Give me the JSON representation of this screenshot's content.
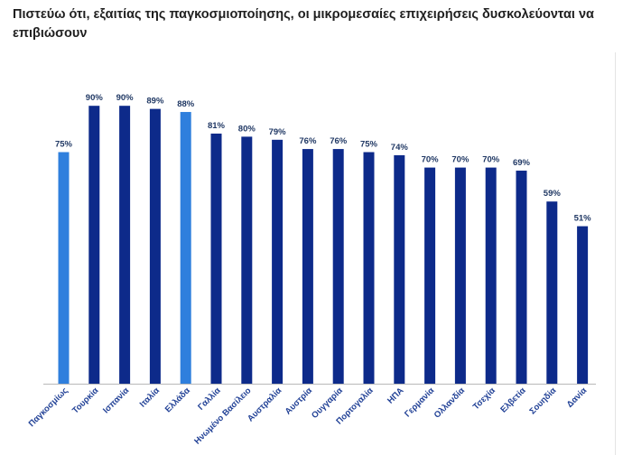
{
  "chart_data": {
    "type": "bar",
    "title": "Πιστεύω ότι, εξαιτίας της παγκοσμιοποίησης, οι μικρομεσαίες επιχειρήσεις δυσκολεύονται να επιβιώσουν",
    "xlabel": "",
    "ylabel": "",
    "ylim": [
      0,
      100
    ],
    "value_suffix": "%",
    "categories": [
      "Παγκοσμίως",
      "Τουρκία",
      "Ισπανία",
      "Ιταλία",
      "Ελλάδα",
      "Γαλλία",
      "Ηνωμένο Βασίλειο",
      "Αυστραλία",
      "Αυστρία",
      "Ουγγαρία",
      "Πορτογαλία",
      "ΗΠΑ",
      "Γερμανία",
      "Ολλανδία",
      "Τσεχία",
      "Ελβετία",
      "Σουηδία",
      "Δανία"
    ],
    "values": [
      75,
      90,
      90,
      89,
      88,
      81,
      80,
      79,
      76,
      76,
      75,
      74,
      70,
      70,
      70,
      69,
      59,
      51
    ],
    "highlighted": [
      "Παγκοσμίως",
      "Ελλάδα"
    ],
    "colors": {
      "default": "#0d2a8a",
      "highlight": "#2f7fdd",
      "value_label": "#203864",
      "category_label": "#1f3f95",
      "axis": "#b8b8b8"
    }
  }
}
